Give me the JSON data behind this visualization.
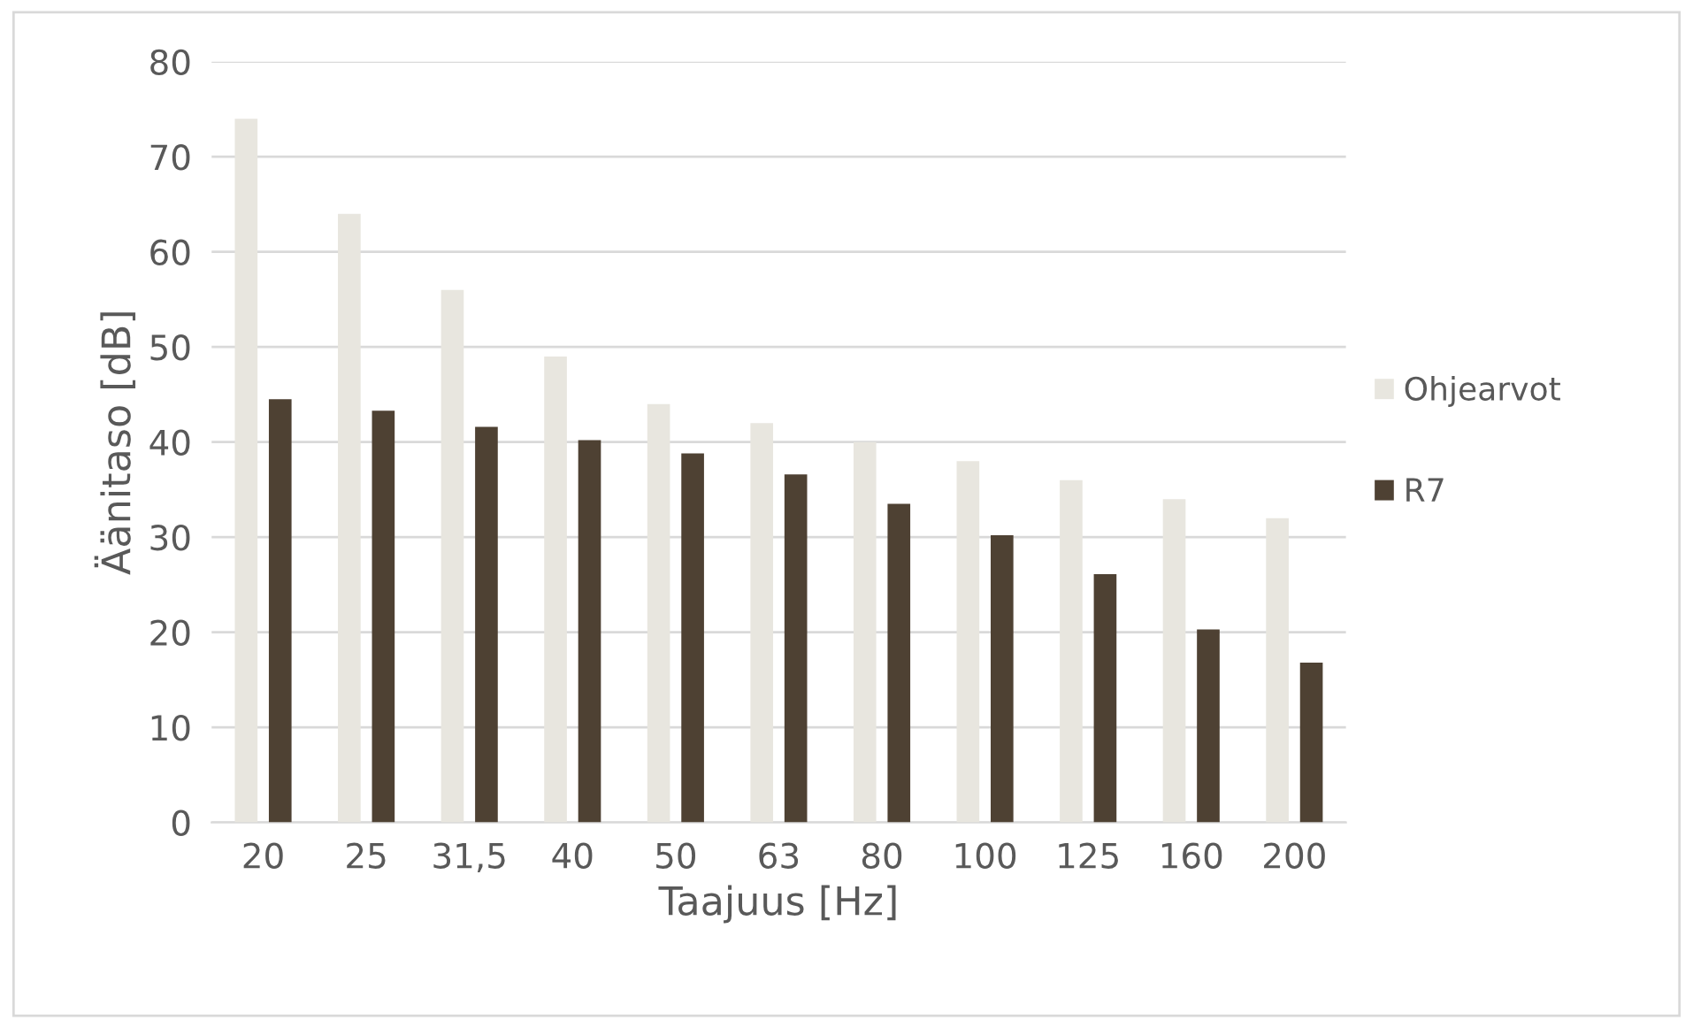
{
  "chart_data": {
    "type": "bar",
    "xlabel": "Taajuus [Hz]",
    "ylabel": "Äänitaso [dB]",
    "categories": [
      "20",
      "25",
      "31,5",
      "40",
      "50",
      "63",
      "80",
      "100",
      "125",
      "160",
      "200"
    ],
    "series": [
      {
        "name": "Ohjearvot",
        "color": "#e8e6df",
        "values": [
          74,
          64,
          56,
          49,
          44,
          42,
          40,
          38,
          36,
          34,
          32
        ]
      },
      {
        "name": "R7",
        "color": "#4e4133",
        "values": [
          44.5,
          43.3,
          41.6,
          40.2,
          38.8,
          36.6,
          33.5,
          30.2,
          26.1,
          20.3,
          16.8
        ]
      }
    ],
    "ylim": [
      0,
      80
    ],
    "yticks": [
      0,
      10,
      20,
      30,
      40,
      50,
      60,
      70,
      80
    ],
    "grid": "y",
    "legend": "right"
  }
}
